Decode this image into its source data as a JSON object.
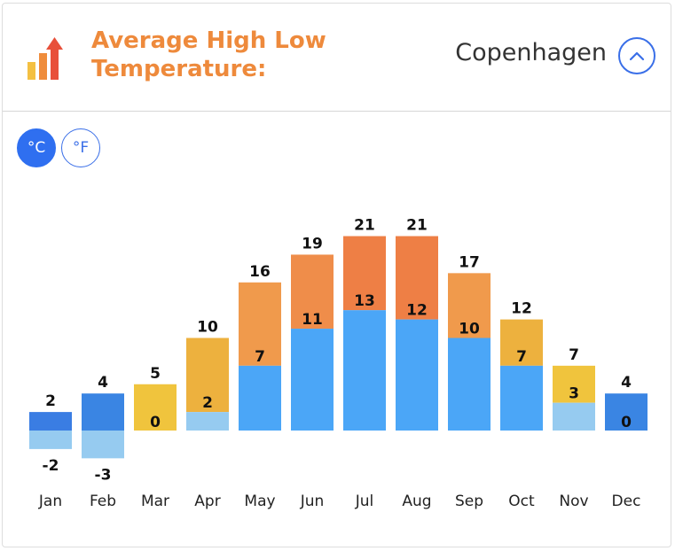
{
  "header": {
    "title": "Average High Low Temperature:",
    "city": "Copenhagen"
  },
  "units": {
    "celsius_label": "°C",
    "fahrenheit_label": "°F",
    "selected": "celsius"
  },
  "chart_data": {
    "type": "bar",
    "title": "Average High Low Temperature:",
    "categories": [
      "Jan",
      "Feb",
      "Mar",
      "Apr",
      "May",
      "Jun",
      "Jul",
      "Aug",
      "Sep",
      "Oct",
      "Nov",
      "Dec"
    ],
    "series": [
      {
        "name": "High",
        "values": [
          2,
          4,
          5,
          10,
          16,
          19,
          21,
          21,
          17,
          12,
          7,
          4
        ]
      },
      {
        "name": "Low",
        "values": [
          -2,
          -3,
          0,
          2,
          7,
          11,
          13,
          12,
          10,
          7,
          3,
          0
        ]
      }
    ],
    "ylim": [
      -3,
      21
    ],
    "grid": false,
    "colors": {
      "high": [
        "#3a7de3",
        "#3a85e3",
        "#f0c43d",
        "#edb13e",
        "#f09a4c",
        "#ef8d4a",
        "#ee7f45",
        "#ee7f45",
        "#f09a4c",
        "#edb13e",
        "#f0c43d",
        "#3a85e3"
      ],
      "low": [
        "#96cbf0",
        "#96cbf0",
        "#f0c43d",
        "#96cbf0",
        "#4ba6f7",
        "#4ba6f7",
        "#4ba6f7",
        "#4ba6f7",
        "#4ba6f7",
        "#4ba6f7",
        "#96cbf0",
        "#3a85e3"
      ]
    }
  }
}
